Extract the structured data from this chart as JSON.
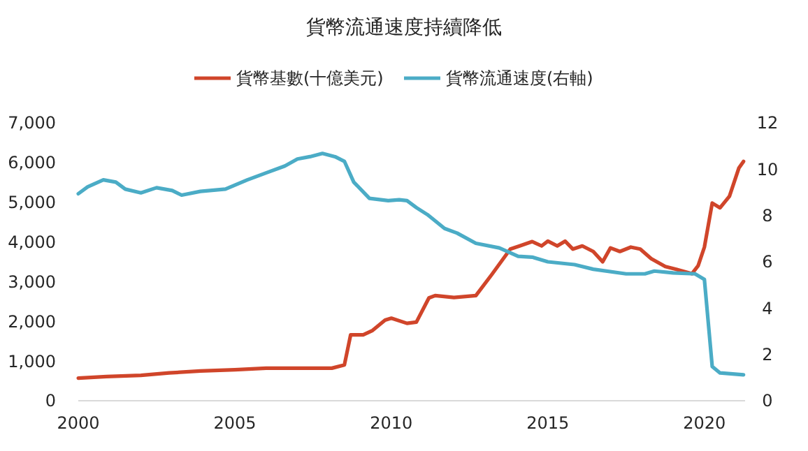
{
  "chart_data": {
    "type": "line",
    "title": "貨幣流通速度持續降低",
    "legend": "top",
    "grid": false,
    "xlim": [
      2000,
      2021.3
    ],
    "xticks": [
      2000,
      2005,
      2010,
      2015,
      2020
    ],
    "ylim": [
      0,
      7000
    ],
    "yticks": [
      {
        "value": 0,
        "label": "0"
      },
      {
        "value": 1000,
        "label": "1,000"
      },
      {
        "value": 2000,
        "label": "2,000"
      },
      {
        "value": 3000,
        "label": "3,000"
      },
      {
        "value": 4000,
        "label": "4,000"
      },
      {
        "value": 5000,
        "label": "5,000"
      },
      {
        "value": 6000,
        "label": "6,000"
      },
      {
        "value": 7000,
        "label": "7,000"
      }
    ],
    "y2lim": [
      0,
      12
    ],
    "y2ticks": [
      0,
      2,
      4,
      6,
      8,
      10,
      12
    ],
    "series": [
      {
        "name": "貨幣基數(十億美元)",
        "color": "#d0452a",
        "x": [
          2000,
          2000.9,
          2002,
          2002.9,
          2003.9,
          2005,
          2006,
          2007,
          2008.1,
          2008.5,
          2008.7,
          2009.1,
          2009.4,
          2009.8,
          2010,
          2010.5,
          2010.8,
          2011.2,
          2011.4,
          2012,
          2012.7,
          2013.2,
          2013.8,
          2014.1,
          2014.5,
          2014.8,
          2015,
          2015.3,
          2015.55,
          2015.8,
          2016.1,
          2016.45,
          2016.75,
          2017,
          2017.3,
          2017.65,
          2017.95,
          2018.3,
          2018.75,
          2019.1,
          2019.6,
          2019.8,
          2020,
          2020.25,
          2020.5,
          2020.8,
          2021.1,
          2021.25
        ],
        "values": [
          570,
          610,
          640,
          700,
          750,
          780,
          820,
          820,
          820,
          900,
          1660,
          1660,
          1770,
          2030,
          2080,
          1950,
          1980,
          2590,
          2650,
          2600,
          2650,
          3170,
          3820,
          3900,
          4010,
          3900,
          4020,
          3900,
          4020,
          3820,
          3900,
          3760,
          3500,
          3850,
          3760,
          3870,
          3820,
          3580,
          3380,
          3310,
          3200,
          3400,
          3870,
          4980,
          4860,
          5150,
          5860,
          6030
        ]
      },
      {
        "name": "貨幣流通速度(右軸)",
        "color": "#4bacc6",
        "axis": "y2",
        "x": [
          2000,
          2000.3,
          2000.8,
          2001.2,
          2001.5,
          2002,
          2002.5,
          2003,
          2003.3,
          2003.9,
          2004.7,
          2005.4,
          2006,
          2006.6,
          2007,
          2007.4,
          2007.8,
          2008.2,
          2008.5,
          2008.8,
          2009.3,
          2009.9,
          2010.25,
          2010.5,
          2010.8,
          2011.15,
          2011.7,
          2012.1,
          2012.7,
          2013.45,
          2014.05,
          2014.5,
          2015,
          2015.85,
          2016.45,
          2017.5,
          2018.1,
          2018.4,
          2019,
          2019.7,
          2020,
          2020.25,
          2020.5,
          2021.25
        ],
        "values": [
          8.94,
          9.24,
          9.54,
          9.44,
          9.14,
          8.98,
          9.2,
          9.08,
          8.88,
          9.04,
          9.14,
          9.54,
          9.84,
          10.14,
          10.44,
          10.54,
          10.68,
          10.54,
          10.34,
          9.44,
          8.74,
          8.64,
          8.68,
          8.64,
          8.34,
          8.04,
          7.44,
          7.24,
          6.8,
          6.6,
          6.24,
          6.2,
          6.0,
          5.88,
          5.68,
          5.48,
          5.48,
          5.6,
          5.52,
          5.48,
          5.24,
          1.48,
          1.2,
          1.12
        ]
      }
    ]
  }
}
